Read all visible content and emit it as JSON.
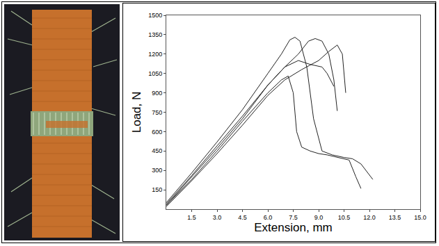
{
  "chart_data": {
    "type": "line",
    "x_label": "Extension, mm",
    "y_label": "Load, N",
    "xlim": [
      0,
      15
    ],
    "xticks": [
      1.5,
      {
        "value": 3,
        "label": "3.0"
      },
      4.5,
      {
        "value": 6,
        "label": "6.0"
      },
      7.5,
      {
        "value": 9,
        "label": "9.0"
      },
      10.5,
      {
        "value": 12,
        "label": "12.0"
      },
      13.5,
      {
        "value": 15,
        "label": "15.0"
      }
    ],
    "ylim": [
      0,
      1500
    ],
    "yticks": [
      150,
      300,
      450,
      600,
      750,
      900,
      1050,
      1200,
      1350,
      1500
    ],
    "grid": false,
    "series": [
      {
        "color": "#222222",
        "x": [
          0,
          1.5,
          3,
          4.5,
          6,
          6.8,
          7.2,
          7.5,
          7.7,
          8,
          8.5,
          9,
          9.5,
          10.2,
          10.8,
          11.2,
          11.5
        ],
        "values": [
          30,
          230,
          450,
          680,
          900,
          1000,
          1030,
          900,
          600,
          480,
          450,
          430,
          420,
          400,
          380,
          250,
          160
        ]
      },
      {
        "color": "#222222",
        "x": [
          0,
          1.5,
          3,
          4.5,
          6,
          6.8,
          7.3,
          7.6,
          7.9,
          8.3,
          8.7,
          9.2,
          9.8,
          10.5,
          11,
          11.5,
          12.2
        ],
        "values": [
          50,
          280,
          520,
          770,
          1050,
          1200,
          1310,
          1330,
          1300,
          1100,
          700,
          450,
          420,
          400,
          390,
          350,
          230
        ]
      },
      {
        "color": "#222222",
        "x": [
          0,
          1.5,
          3,
          4.5,
          6,
          7,
          7.8,
          8.4,
          8.8,
          9.2,
          9.6,
          9.9,
          10.1
        ],
        "values": [
          40,
          260,
          490,
          720,
          960,
          1100,
          1200,
          1300,
          1320,
          1300,
          1200,
          1000,
          760
        ]
      },
      {
        "color": "#222222",
        "x": [
          0,
          1.5,
          3,
          4.5,
          6,
          7,
          8,
          9,
          9.6,
          10.1,
          10.4,
          10.6
        ],
        "values": [
          20,
          220,
          430,
          650,
          880,
          1000,
          1080,
          1150,
          1220,
          1270,
          1200,
          900
        ]
      },
      {
        "color": "#222222",
        "x": [
          0,
          1.5,
          3,
          4.5,
          6,
          7,
          7.8,
          8.5,
          9.2,
          9.5,
          9.9
        ],
        "values": [
          30,
          250,
          470,
          700,
          960,
          1100,
          1150,
          1120,
          1100,
          1050,
          950
        ]
      }
    ]
  }
}
